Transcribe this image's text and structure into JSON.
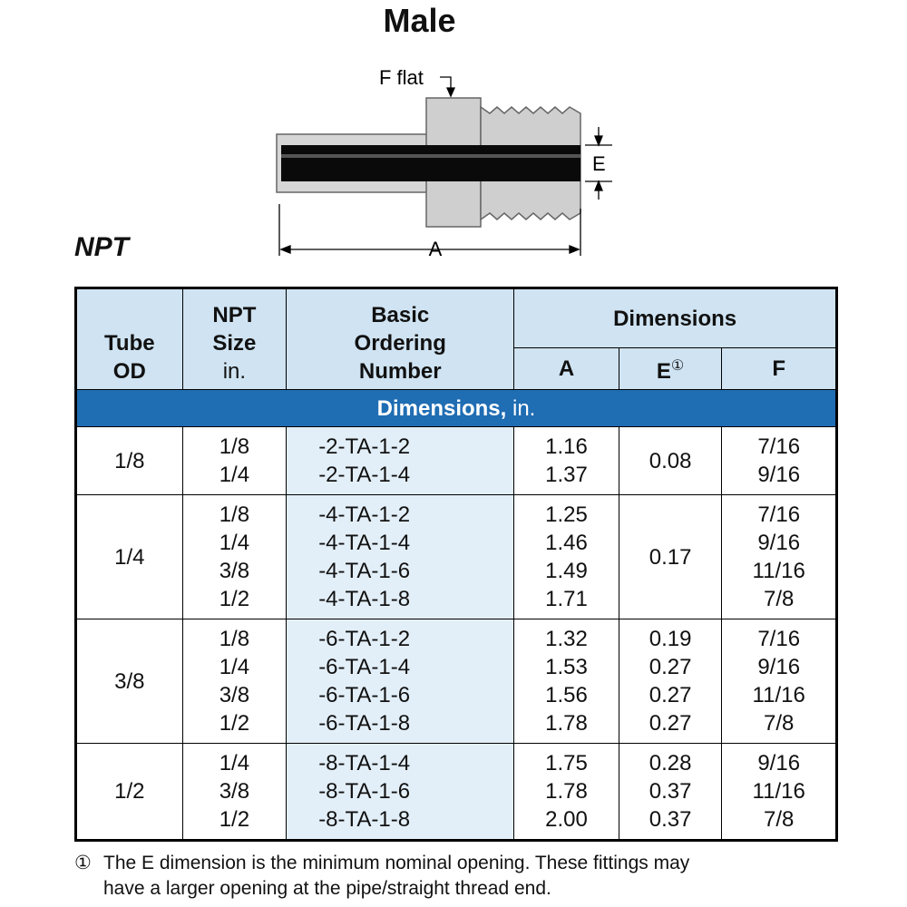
{
  "title": "Male",
  "subtitle": "NPT",
  "diagram": {
    "f_label": "F flat",
    "e_label": "E",
    "a_label": "A"
  },
  "table": {
    "headers": {
      "tube_od": [
        "Tube",
        "OD"
      ],
      "npt_size": [
        "NPT",
        "Size"
      ],
      "npt_unit": "in.",
      "ordering": [
        "Basic",
        "Ordering",
        "Number"
      ],
      "dimensions": "Dimensions",
      "a": "A",
      "e": "E",
      "e_mark": "①",
      "f": "F"
    },
    "band": {
      "label": "Dimensions,",
      "unit": "in."
    },
    "groups": [
      {
        "tube_od": "1/8",
        "npt": [
          "1/8",
          "1/4"
        ],
        "number": [
          "-2-TA-1-2",
          "-2-TA-1-4"
        ],
        "a": [
          "1.16",
          "1.37"
        ],
        "e": [
          "0.08"
        ],
        "f": [
          "7/16",
          "9/16"
        ]
      },
      {
        "tube_od": "1/4",
        "npt": [
          "1/8",
          "1/4",
          "3/8",
          "1/2"
        ],
        "number": [
          "-4-TA-1-2",
          "-4-TA-1-4",
          "-4-TA-1-6",
          "-4-TA-1-8"
        ],
        "a": [
          "1.25",
          "1.46",
          "1.49",
          "1.71"
        ],
        "e": [
          "0.17"
        ],
        "f": [
          "7/16",
          "9/16",
          "11/16",
          "7/8"
        ]
      },
      {
        "tube_od": "3/8",
        "npt": [
          "1/8",
          "1/4",
          "3/8",
          "1/2"
        ],
        "number": [
          "-6-TA-1-2",
          "-6-TA-1-4",
          "-6-TA-1-6",
          "-6-TA-1-8"
        ],
        "a": [
          "1.32",
          "1.53",
          "1.56",
          "1.78"
        ],
        "e": [
          "0.19",
          "0.27",
          "0.27",
          "0.27"
        ],
        "f": [
          "7/16",
          "9/16",
          "11/16",
          "7/8"
        ]
      },
      {
        "tube_od": "1/2",
        "npt": [
          "1/4",
          "3/8",
          "1/2"
        ],
        "number": [
          "-8-TA-1-4",
          "-8-TA-1-6",
          "-8-TA-1-8"
        ],
        "a": [
          "1.75",
          "1.78",
          "2.00"
        ],
        "e": [
          "0.28",
          "0.37",
          "0.37"
        ],
        "f": [
          "9/16",
          "11/16",
          "7/8"
        ]
      }
    ]
  },
  "footnote": {
    "mark": "①",
    "lines": [
      "The E dimension is the minimum nominal opening. These fittings may",
      "have a larger opening at the pipe/straight thread end."
    ]
  }
}
